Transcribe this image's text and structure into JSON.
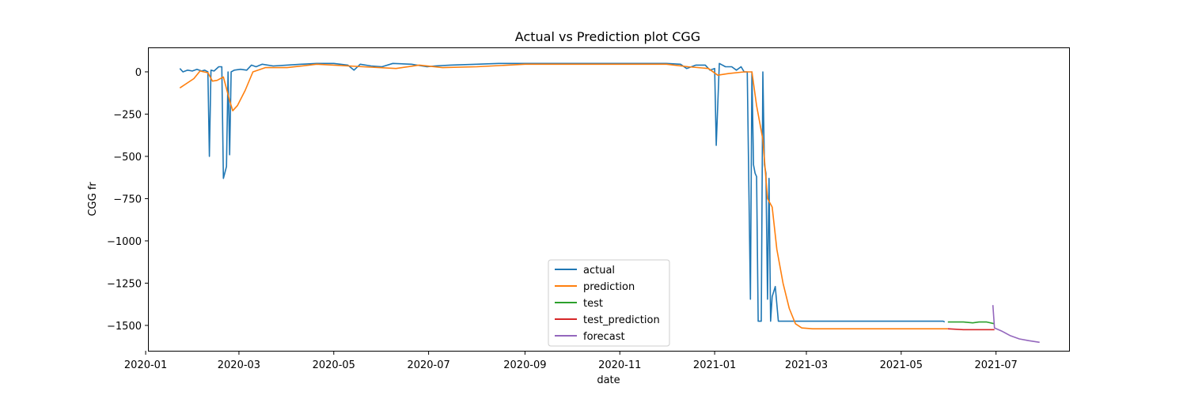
{
  "chart_data": {
    "type": "line",
    "title": "Actual vs Prediction plot CGG",
    "xlabel": "date",
    "ylabel": "CGG fr",
    "xlim": [
      "2020-01-03",
      "2021-08-17"
    ],
    "ylim": [
      -1650,
      140
    ],
    "grid": false,
    "legend_position": "bottom-center",
    "x_ticks": [
      "2020-01",
      "2020-03",
      "2020-05",
      "2020-07",
      "2020-09",
      "2020-11",
      "2021-01",
      "2021-03",
      "2021-05",
      "2021-07"
    ],
    "y_ticks": [
      0,
      -250,
      -500,
      -750,
      -1000,
      -1250,
      -1500
    ],
    "y_tick_labels": [
      "0",
      "−250",
      "−500",
      "−750",
      "−1000",
      "−1250",
      "−1500"
    ],
    "series": [
      {
        "name": "actual",
        "color": "#1f77b4",
        "points": [
          [
            "2020-01-23",
            20
          ],
          [
            "2020-01-25",
            0
          ],
          [
            "2020-01-28",
            10
          ],
          [
            "2020-01-31",
            5
          ],
          [
            "2020-02-03",
            15
          ],
          [
            "2020-02-06",
            5
          ],
          [
            "2020-02-08",
            10
          ],
          [
            "2020-02-10",
            0
          ],
          [
            "2020-02-11",
            -500
          ],
          [
            "2020-02-12",
            10
          ],
          [
            "2020-02-14",
            5
          ],
          [
            "2020-02-17",
            30
          ],
          [
            "2020-02-19",
            30
          ],
          [
            "2020-02-20",
            -630
          ],
          [
            "2020-02-22",
            -560
          ],
          [
            "2020-02-23",
            0
          ],
          [
            "2020-02-24",
            -490
          ],
          [
            "2020-02-25",
            0
          ],
          [
            "2020-02-27",
            10
          ],
          [
            "2020-03-02",
            15
          ],
          [
            "2020-03-06",
            10
          ],
          [
            "2020-03-09",
            40
          ],
          [
            "2020-03-12",
            30
          ],
          [
            "2020-03-16",
            45
          ],
          [
            "2020-03-23",
            35
          ],
          [
            "2020-04-01",
            40
          ],
          [
            "2020-04-10",
            45
          ],
          [
            "2020-04-20",
            50
          ],
          [
            "2020-05-01",
            50
          ],
          [
            "2020-05-10",
            40
          ],
          [
            "2020-05-14",
            10
          ],
          [
            "2020-05-18",
            45
          ],
          [
            "2020-05-25",
            35
          ],
          [
            "2020-06-01",
            30
          ],
          [
            "2020-06-08",
            50
          ],
          [
            "2020-06-20",
            45
          ],
          [
            "2020-06-30",
            30
          ],
          [
            "2020-07-05",
            35
          ],
          [
            "2020-07-15",
            40
          ],
          [
            "2020-08-01",
            45
          ],
          [
            "2020-08-15",
            50
          ],
          [
            "2020-09-01",
            50
          ],
          [
            "2020-09-15",
            50
          ],
          [
            "2020-10-01",
            50
          ],
          [
            "2020-10-15",
            50
          ],
          [
            "2020-11-01",
            50
          ],
          [
            "2020-11-15",
            50
          ],
          [
            "2020-12-01",
            50
          ],
          [
            "2020-12-10",
            45
          ],
          [
            "2020-12-14",
            20
          ],
          [
            "2020-12-20",
            40
          ],
          [
            "2020-12-26",
            40
          ],
          [
            "2020-12-29",
            10
          ],
          [
            "2021-01-01",
            20
          ],
          [
            "2021-01-02",
            -435
          ],
          [
            "2021-01-04",
            50
          ],
          [
            "2021-01-08",
            30
          ],
          [
            "2021-01-12",
            30
          ],
          [
            "2021-01-15",
            10
          ],
          [
            "2021-01-18",
            30
          ],
          [
            "2021-01-20",
            0
          ],
          [
            "2021-01-22",
            0
          ],
          [
            "2021-01-24",
            -1345
          ],
          [
            "2021-01-25",
            0
          ],
          [
            "2021-01-26",
            -550
          ],
          [
            "2021-01-27",
            -600
          ],
          [
            "2021-01-28",
            -620
          ],
          [
            "2021-01-29",
            -1475
          ],
          [
            "2021-01-31",
            -1475
          ],
          [
            "2021-02-01",
            0
          ],
          [
            "2021-02-02",
            -550
          ],
          [
            "2021-02-03",
            -600
          ],
          [
            "2021-02-04",
            -1345
          ],
          [
            "2021-02-05",
            -630
          ],
          [
            "2021-02-06",
            -1475
          ],
          [
            "2021-02-07",
            -1330
          ],
          [
            "2021-02-09",
            -1270
          ],
          [
            "2021-02-11",
            -1475
          ],
          [
            "2021-03-01",
            -1475
          ],
          [
            "2021-04-01",
            -1475
          ],
          [
            "2021-05-01",
            -1475
          ],
          [
            "2021-05-28",
            -1475
          ],
          [
            "2021-05-29",
            -1480
          ]
        ]
      },
      {
        "name": "prediction",
        "color": "#ff7f0e",
        "points": [
          [
            "2020-01-23",
            -95
          ],
          [
            "2020-02-01",
            -40
          ],
          [
            "2020-02-05",
            5
          ],
          [
            "2020-02-10",
            -5
          ],
          [
            "2020-02-13",
            -55
          ],
          [
            "2020-02-16",
            -50
          ],
          [
            "2020-02-20",
            -30
          ],
          [
            "2020-02-24",
            -170
          ],
          [
            "2020-02-26",
            -230
          ],
          [
            "2020-02-29",
            -200
          ],
          [
            "2020-03-05",
            -110
          ],
          [
            "2020-03-10",
            0
          ],
          [
            "2020-03-18",
            25
          ],
          [
            "2020-04-01",
            25
          ],
          [
            "2020-04-20",
            45
          ],
          [
            "2020-05-01",
            40
          ],
          [
            "2020-05-20",
            30
          ],
          [
            "2020-06-10",
            20
          ],
          [
            "2020-06-25",
            40
          ],
          [
            "2020-07-10",
            25
          ],
          [
            "2020-08-01",
            30
          ],
          [
            "2020-09-01",
            45
          ],
          [
            "2020-10-01",
            45
          ],
          [
            "2020-11-01",
            45
          ],
          [
            "2020-12-01",
            45
          ],
          [
            "2020-12-15",
            30
          ],
          [
            "2020-12-28",
            20
          ],
          [
            "2021-01-03",
            -20
          ],
          [
            "2021-01-10",
            -10
          ],
          [
            "2021-01-20",
            0
          ],
          [
            "2021-01-25",
            0
          ],
          [
            "2021-01-28",
            -200
          ],
          [
            "2021-02-01",
            -400
          ],
          [
            "2021-02-04",
            -750
          ],
          [
            "2021-02-07",
            -800
          ],
          [
            "2021-02-10",
            -1050
          ],
          [
            "2021-02-14",
            -1250
          ],
          [
            "2021-02-18",
            -1400
          ],
          [
            "2021-02-22",
            -1490
          ],
          [
            "2021-02-26",
            -1515
          ],
          [
            "2021-03-05",
            -1520
          ],
          [
            "2021-04-01",
            -1520
          ],
          [
            "2021-05-01",
            -1520
          ],
          [
            "2021-05-31",
            -1520
          ]
        ]
      },
      {
        "name": "test",
        "color": "#2ca02c",
        "points": [
          [
            "2021-05-31",
            -1480
          ],
          [
            "2021-06-10",
            -1480
          ],
          [
            "2021-06-16",
            -1485
          ],
          [
            "2021-06-20",
            -1480
          ],
          [
            "2021-06-25",
            -1480
          ],
          [
            "2021-06-30",
            -1490
          ]
        ]
      },
      {
        "name": "test_prediction",
        "color": "#d62728",
        "points": [
          [
            "2021-05-31",
            -1520
          ],
          [
            "2021-06-10",
            -1525
          ],
          [
            "2021-06-20",
            -1525
          ],
          [
            "2021-06-30",
            -1525
          ]
        ]
      },
      {
        "name": "forecast",
        "color": "#9467bd",
        "points": [
          [
            "2021-06-29",
            -1380
          ],
          [
            "2021-06-30",
            -1515
          ],
          [
            "2021-07-05",
            -1535
          ],
          [
            "2021-07-10",
            -1560
          ],
          [
            "2021-07-16",
            -1580
          ],
          [
            "2021-07-22",
            -1590
          ],
          [
            "2021-07-29",
            -1600
          ]
        ]
      }
    ]
  }
}
